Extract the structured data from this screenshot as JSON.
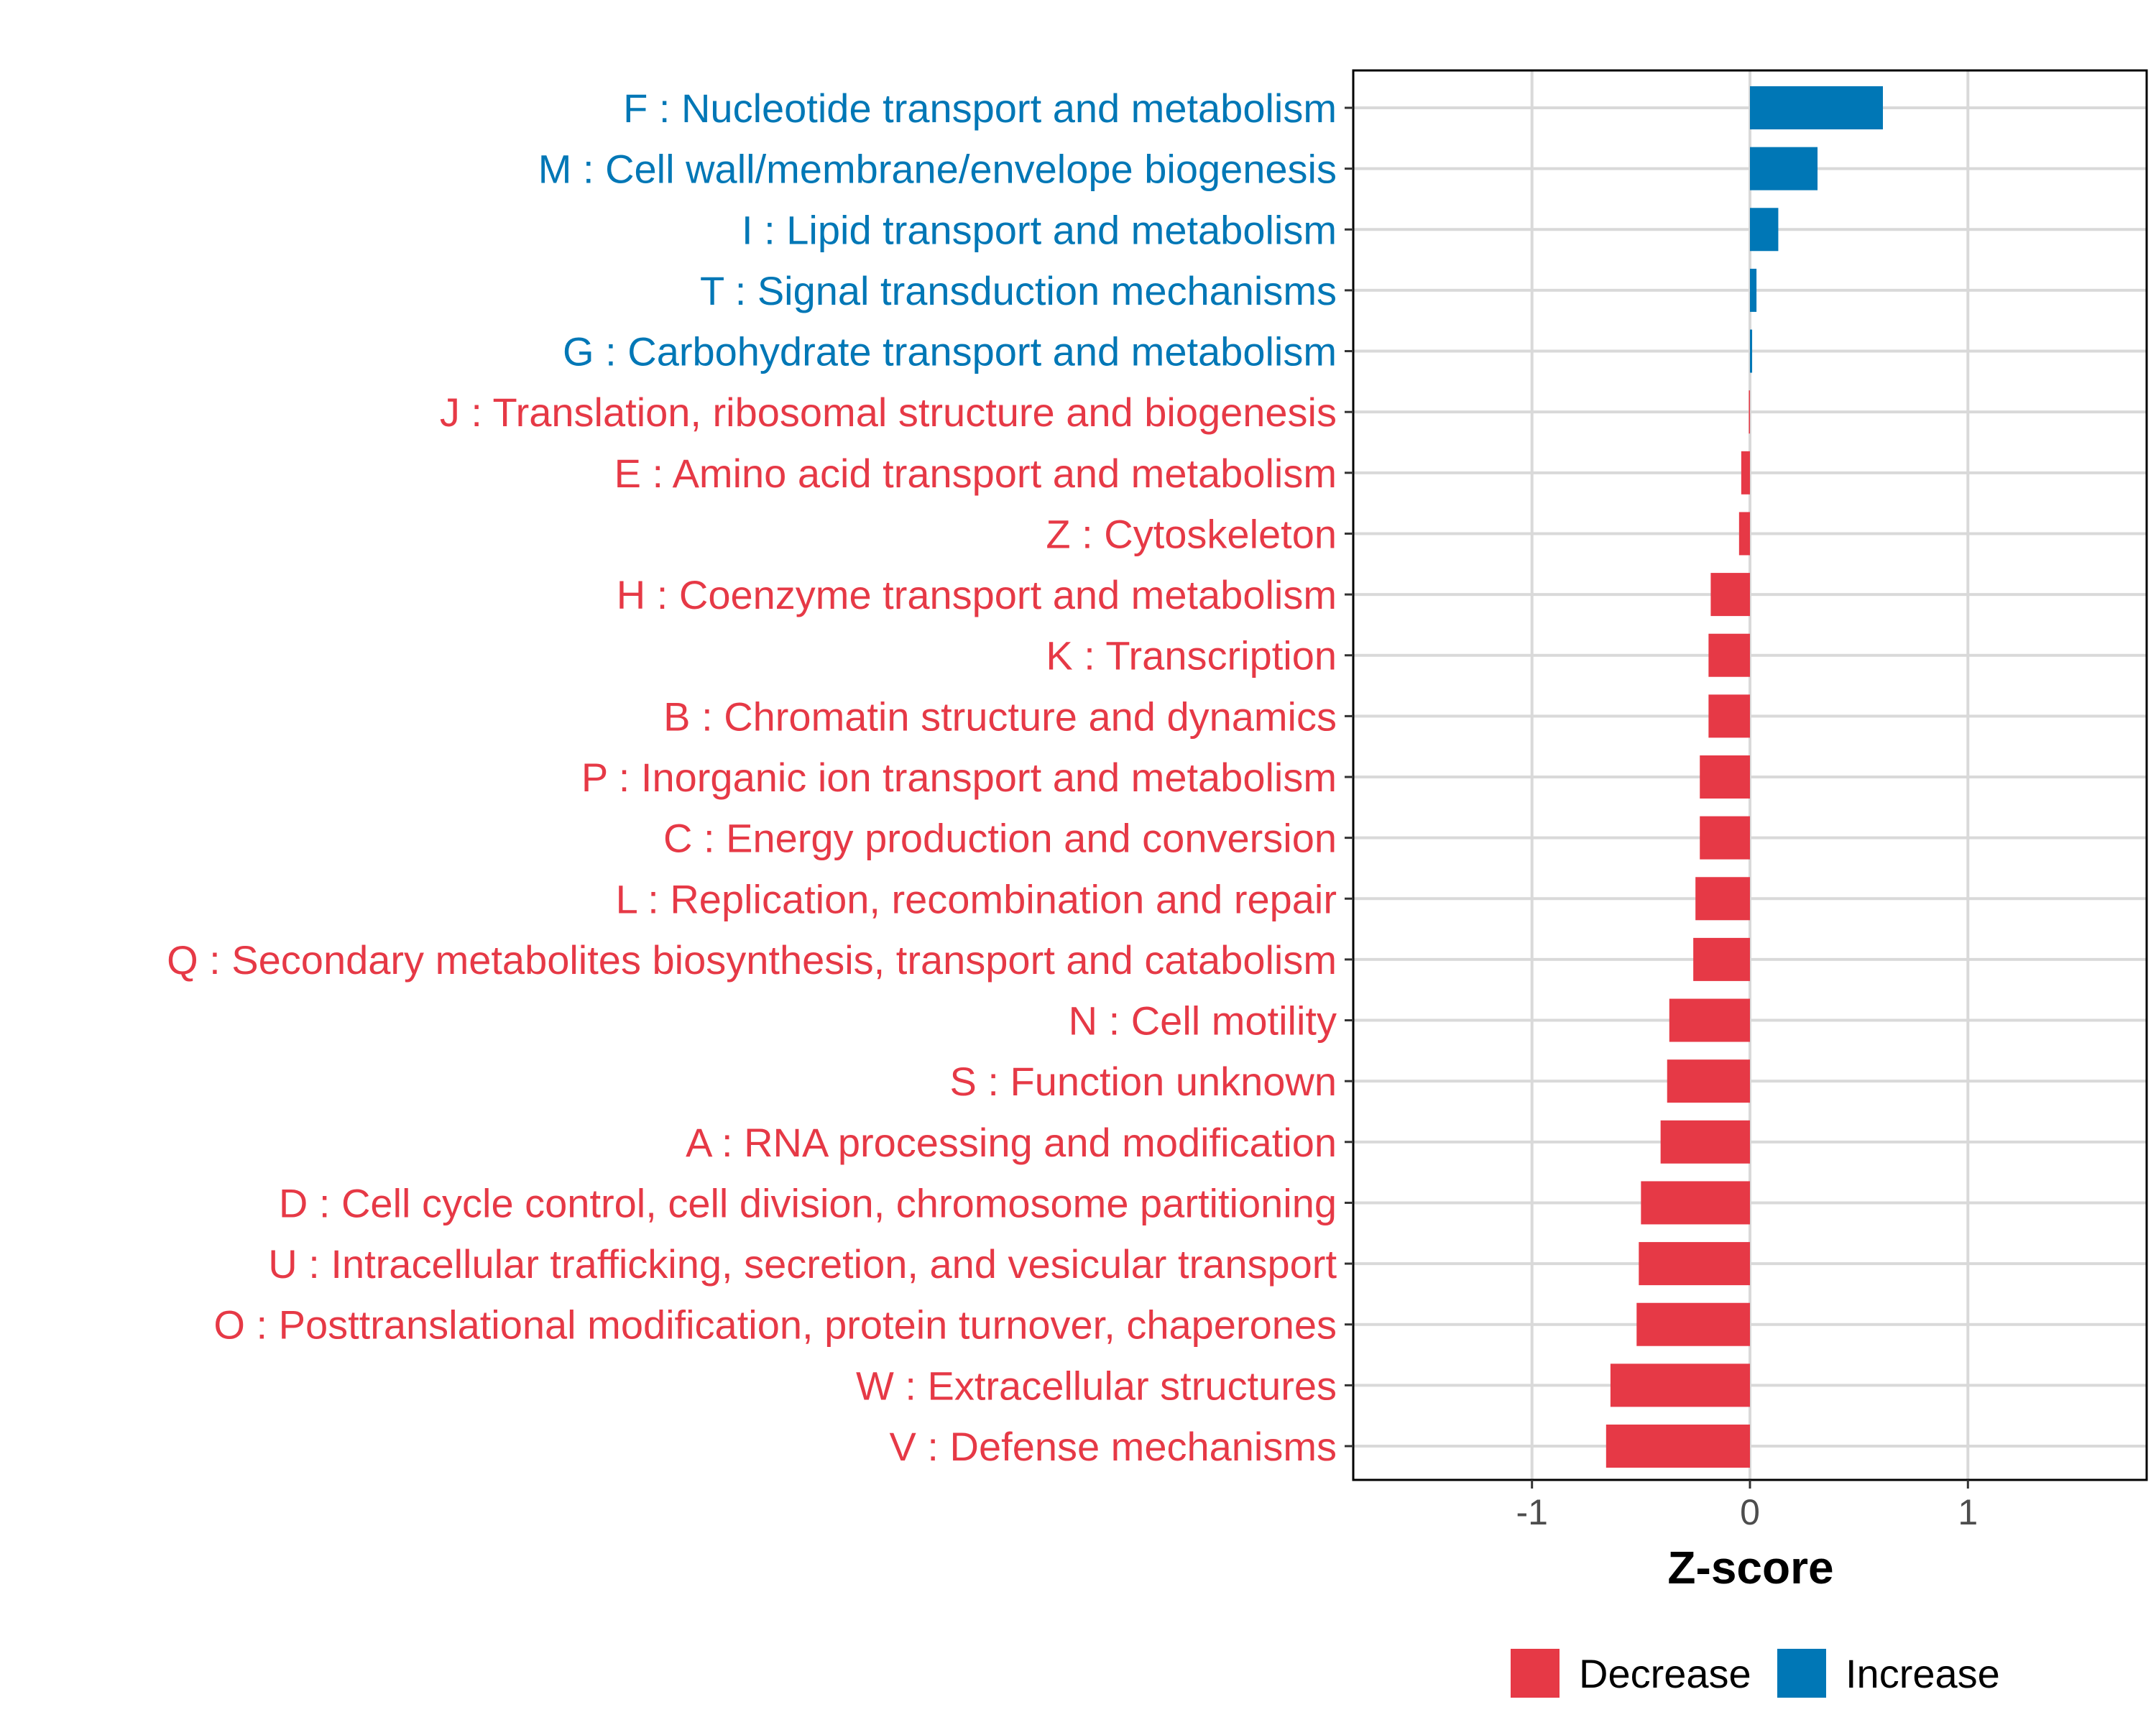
{
  "chart_data": {
    "type": "bar",
    "orientation": "horizontal",
    "title": "",
    "xlabel": "Z-score",
    "ylabel": "",
    "xlim": [
      -1.82,
      1.82
    ],
    "xticks": [
      -1,
      0,
      1
    ],
    "xtick_labels": [
      "-1",
      "0",
      "1"
    ],
    "grid": true,
    "legend_position": "bottom",
    "categories": [
      "F : Nucleotide transport and metabolism",
      "M : Cell wall/membrane/envelope biogenesis",
      "I : Lipid transport and metabolism",
      "T : Signal transduction mechanisms",
      "G : Carbohydrate transport and metabolism",
      "J : Translation, ribosomal structure and biogenesis",
      "E : Amino acid transport and metabolism",
      "Z : Cytoskeleton",
      "H : Coenzyme transport and metabolism",
      "K : Transcription",
      "B : Chromatin structure and dynamics",
      "P : Inorganic ion transport and metabolism",
      "C : Energy production and conversion",
      "L : Replication, recombination and repair",
      "Q : Secondary metabolites biosynthesis, transport and catabolism",
      "N : Cell motility",
      "S : Function unknown",
      "A : RNA processing and modification",
      "D : Cell cycle control, cell division, chromosome partitioning",
      "U : Intracellular trafficking, secretion, and vesicular transport",
      "O : Posttranslational modification, protein turnover, chaperones",
      "W : Extracellular structures",
      "V : Defense mechanisms"
    ],
    "values": [
      0.61,
      0.31,
      0.13,
      0.03,
      0.01,
      -0.005,
      -0.04,
      -0.05,
      -0.18,
      -0.19,
      -0.19,
      -0.23,
      -0.23,
      -0.25,
      -0.26,
      -0.37,
      -0.38,
      -0.41,
      -0.5,
      -0.51,
      -0.52,
      -0.64,
      -0.66
    ],
    "groups": [
      "Increase",
      "Increase",
      "Increase",
      "Increase",
      "Increase",
      "Decrease",
      "Decrease",
      "Decrease",
      "Decrease",
      "Decrease",
      "Decrease",
      "Decrease",
      "Decrease",
      "Decrease",
      "Decrease",
      "Decrease",
      "Decrease",
      "Decrease",
      "Decrease",
      "Decrease",
      "Decrease",
      "Decrease",
      "Decrease"
    ],
    "legend": [
      {
        "name": "Decrease",
        "color": "#e63946"
      },
      {
        "name": "Increase",
        "color": "#0077b6"
      }
    ]
  }
}
